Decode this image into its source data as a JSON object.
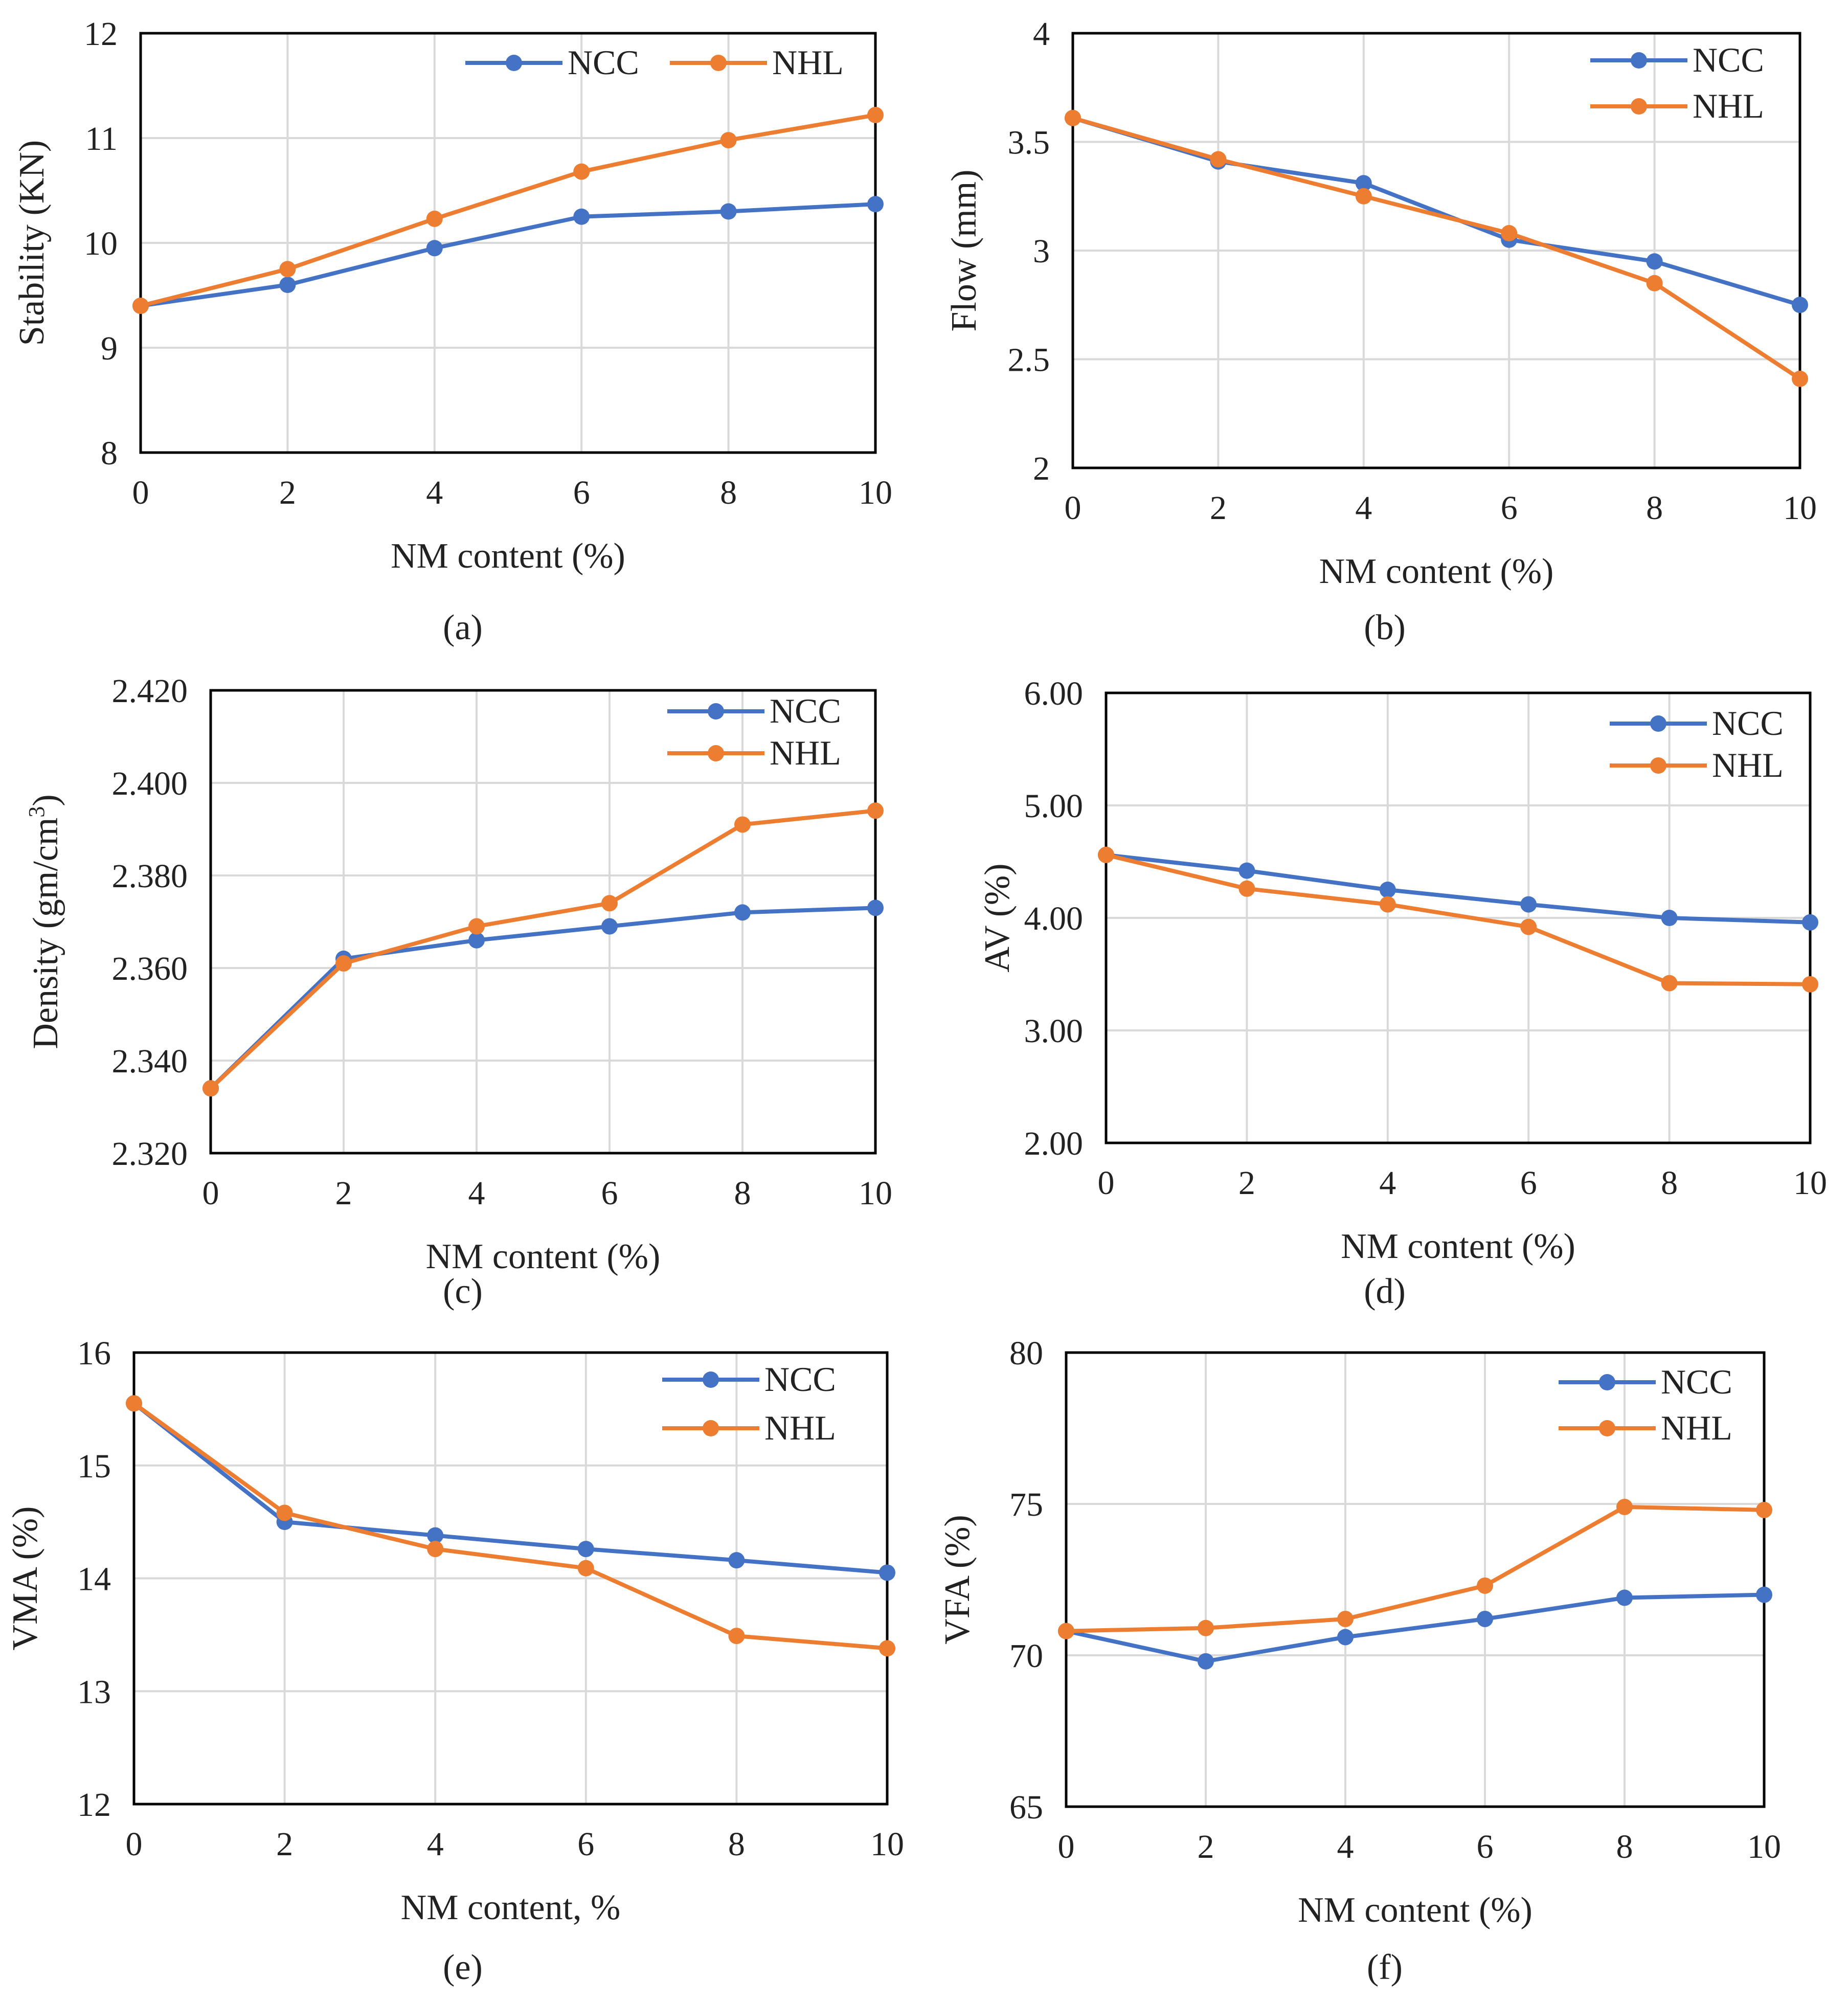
{
  "colors": {
    "ncc": "#4472C4",
    "nhl": "#ED7D31",
    "grid": "#D9D9D9",
    "axis": "#000000"
  },
  "chart_data": [
    {
      "id": "a",
      "type": "line",
      "caption": "(a)",
      "xlabel": "NM content (%)",
      "ylabel": "Stability (KN)",
      "x": [
        0,
        2,
        4,
        6,
        8,
        10
      ],
      "xticks": [
        "0",
        "2",
        "4",
        "6",
        "8",
        "10"
      ],
      "ylim": [
        8,
        12
      ],
      "yticks": [
        "8",
        "9",
        "10",
        "11",
        "12"
      ],
      "legend_position": "top-right",
      "legend_layout": "horizontal",
      "series": [
        {
          "name": "NCC",
          "color": "#4472C4",
          "values": [
            9.4,
            9.6,
            9.95,
            10.25,
            10.3,
            10.37
          ]
        },
        {
          "name": "NHL",
          "color": "#ED7D31",
          "values": [
            9.4,
            9.75,
            10.23,
            10.68,
            10.98,
            11.22
          ]
        }
      ]
    },
    {
      "id": "b",
      "type": "line",
      "caption": "(b)",
      "xlabel": "NM content (%)",
      "ylabel": "Flow (mm)",
      "x": [
        0,
        2,
        4,
        6,
        8,
        10
      ],
      "xticks": [
        "0",
        "2",
        "4",
        "6",
        "8",
        "10"
      ],
      "ylim": [
        2,
        4
      ],
      "yticks": [
        "2",
        "2.5",
        "3",
        "3.5",
        "4"
      ],
      "legend_position": "top-right",
      "legend_layout": "vertical",
      "series": [
        {
          "name": "NCC",
          "color": "#4472C4",
          "values": [
            3.61,
            3.41,
            3.31,
            3.05,
            2.95,
            2.75
          ]
        },
        {
          "name": "NHL",
          "color": "#ED7D31",
          "values": [
            3.61,
            3.42,
            3.25,
            3.08,
            2.85,
            2.41
          ]
        }
      ]
    },
    {
      "id": "c",
      "type": "line",
      "caption": "(c)",
      "xlabel": "NM content (%)",
      "ylabel": "Density (gm/cm",
      "ylabel_sup": "3",
      "ylabel_end": ")",
      "x": [
        0,
        2,
        4,
        6,
        8,
        10
      ],
      "xticks": [
        "0",
        "2",
        "4",
        "6",
        "8",
        "10"
      ],
      "ylim": [
        2.32,
        2.42
      ],
      "yticks": [
        "2.320",
        "2.340",
        "2.360",
        "2.380",
        "2.400",
        "2.420"
      ],
      "legend_position": "top-right",
      "legend_layout": "vertical",
      "series": [
        {
          "name": "NCC",
          "color": "#4472C4",
          "values": [
            2.334,
            2.362,
            2.366,
            2.369,
            2.372,
            2.373
          ]
        },
        {
          "name": "NHL",
          "color": "#ED7D31",
          "values": [
            2.334,
            2.361,
            2.369,
            2.374,
            2.391,
            2.394
          ]
        }
      ]
    },
    {
      "id": "d",
      "type": "line",
      "caption": "(d)",
      "xlabel": "NM content (%)",
      "ylabel": "AV (%)",
      "x": [
        0,
        2,
        4,
        6,
        8,
        10
      ],
      "xticks": [
        "0",
        "2",
        "4",
        "6",
        "8",
        "10"
      ],
      "ylim": [
        2,
        6
      ],
      "yticks": [
        "2.00",
        "3.00",
        "4.00",
        "5.00",
        "6.00"
      ],
      "legend_position": "top-right",
      "legend_layout": "vertical",
      "series": [
        {
          "name": "NCC",
          "color": "#4472C4",
          "values": [
            4.56,
            4.42,
            4.25,
            4.12,
            4.0,
            3.96
          ]
        },
        {
          "name": "NHL",
          "color": "#ED7D31",
          "values": [
            4.56,
            4.26,
            4.12,
            3.92,
            3.42,
            3.41
          ]
        }
      ]
    },
    {
      "id": "e",
      "type": "line",
      "caption": "(e)",
      "xlabel": "NM content, %",
      "ylabel": "VMA (%)",
      "x": [
        0,
        2,
        4,
        6,
        8,
        10
      ],
      "xticks": [
        "0",
        "2",
        "4",
        "6",
        "8",
        "10"
      ],
      "ylim": [
        12,
        16
      ],
      "yticks": [
        "12",
        "13",
        "14",
        "15",
        "16"
      ],
      "legend_position": "top-right",
      "legend_layout": "vertical",
      "series": [
        {
          "name": "NCC",
          "color": "#4472C4",
          "values": [
            15.55,
            14.5,
            14.38,
            14.26,
            14.16,
            14.05
          ]
        },
        {
          "name": "NHL",
          "color": "#ED7D31",
          "values": [
            15.55,
            14.58,
            14.26,
            14.09,
            13.49,
            13.38
          ]
        }
      ]
    },
    {
      "id": "f",
      "type": "line",
      "caption": "(f)",
      "xlabel": "NM content (%)",
      "ylabel": "VFA (%)",
      "x": [
        0,
        2,
        4,
        6,
        8,
        10
      ],
      "xticks": [
        "0",
        "2",
        "4",
        "6",
        "8",
        "10"
      ],
      "ylim": [
        65,
        80
      ],
      "yticks": [
        "65",
        "70",
        "75",
        "80"
      ],
      "legend_position": "top-right",
      "legend_layout": "vertical",
      "series": [
        {
          "name": "NCC",
          "color": "#4472C4",
          "values": [
            70.8,
            69.8,
            70.6,
            71.2,
            71.9,
            72.0
          ]
        },
        {
          "name": "NHL",
          "color": "#ED7D31",
          "values": [
            70.8,
            70.9,
            71.2,
            72.3,
            74.9,
            74.8
          ]
        }
      ]
    }
  ]
}
